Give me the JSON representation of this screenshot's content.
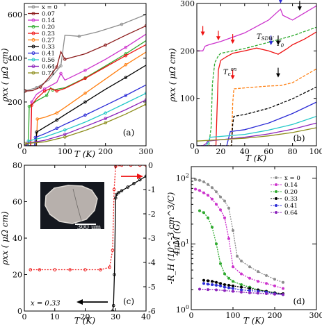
{
  "colors": {
    "x0": "#8c8c8c",
    "x007": "#8b1a1a",
    "x014": "#cc33cc",
    "x020": "#2eaa2e",
    "x023": "#ee1111",
    "x027": "#ff7f11",
    "x033": "#000000",
    "x041": "#2b2bd6",
    "x056": "#22c8c8",
    "x064": "#8b22bb",
    "x071": "#8c8c1a"
  },
  "chart_data": [
    {
      "panel": "(a)",
      "type": "line",
      "xlabel": "T (K)",
      "ylabel": "ρxx ( μΩ cm)",
      "xlim": [
        0,
        300
      ],
      "ylim": [
        0,
        650
      ],
      "xticks": [
        "0",
        "100",
        "200",
        "300"
      ],
      "yticks": [
        "0",
        "200",
        "400",
        "600"
      ],
      "legend_position": "top-left",
      "legend": [
        "x = 0",
        "0.07",
        "0.14",
        "0.20",
        "0.23",
        "0.27",
        "0.33",
        "0.41",
        "0.56",
        "0.64",
        "0.71"
      ],
      "series": [
        {
          "color_key": "x0",
          "x": [
            2,
            10,
            30,
            60,
            90,
            100,
            135,
            180,
            240,
            300
          ],
          "y": [
            252,
            255,
            265,
            300,
            365,
            505,
            500,
            520,
            555,
            600
          ]
        },
        {
          "color_key": "x007",
          "x": [
            2,
            20,
            40,
            60,
            80,
            90,
            100,
            150,
            200,
            250,
            300
          ],
          "y": [
            250,
            252,
            268,
            310,
            360,
            430,
            395,
            420,
            460,
            505,
            548
          ]
        },
        {
          "color_key": "x014",
          "x": [
            2,
            15,
            18,
            30,
            50,
            80,
            90,
            100,
            150,
            200,
            250,
            300
          ],
          "y": [
            0,
            0,
            200,
            235,
            260,
            290,
            330,
            300,
            345,
            395,
            450,
            510
          ]
        },
        {
          "color_key": "x020",
          "x": [
            2,
            10,
            12,
            30,
            55,
            65,
            70,
            100,
            150,
            200,
            250,
            300
          ],
          "y": [
            0,
            0,
            180,
            205,
            230,
            265,
            255,
            265,
            310,
            365,
            420,
            480
          ]
        },
        {
          "color_key": "x023",
          "x": [
            2,
            16,
            18,
            30,
            50,
            65,
            80,
            100,
            150,
            200,
            250,
            300
          ],
          "y": [
            0,
            0,
            185,
            215,
            250,
            262,
            250,
            262,
            308,
            360,
            412,
            462
          ]
        },
        {
          "color_key": "x027",
          "x": [
            2,
            30,
            32,
            50,
            80,
            100,
            150,
            200,
            250,
            300
          ],
          "y": [
            0,
            0,
            122,
            130,
            150,
            175,
            240,
            305,
            370,
            428
          ]
        },
        {
          "color_key": "x033",
          "x": [
            2,
            29,
            30,
            50,
            80,
            100,
            150,
            200,
            250,
            300
          ],
          "y": [
            0,
            0,
            62,
            85,
            118,
            142,
            200,
            258,
            312,
            368
          ]
        },
        {
          "color_key": "x041",
          "x": [
            2,
            25,
            27,
            50,
            80,
            100,
            150,
            200,
            250,
            300
          ],
          "y": [
            0,
            0,
            38,
            55,
            80,
            98,
            140,
            185,
            230,
            278
          ]
        },
        {
          "color_key": "x056",
          "x": [
            2,
            8,
            10,
            50,
            100,
            150,
            200,
            250,
            300
          ],
          "y": [
            0,
            0,
            22,
            40,
            72,
            108,
            150,
            195,
            240
          ]
        },
        {
          "color_key": "x064",
          "x": [
            2,
            5,
            8,
            50,
            100,
            150,
            200,
            250,
            300
          ],
          "y": [
            0,
            0,
            12,
            25,
            52,
            88,
            125,
            165,
            210
          ]
        },
        {
          "color_key": "x071",
          "x": [
            2,
            50,
            100,
            150,
            200,
            250,
            300
          ],
          "y": [
            10,
            18,
            40,
            70,
            105,
            145,
            190
          ]
        }
      ]
    },
    {
      "panel": "(b)",
      "type": "line",
      "xlabel": "T (K)",
      "ylabel": "ρxx ( μΩ cm)",
      "xlim": [
        0,
        100
      ],
      "ylim": [
        0,
        300
      ],
      "xticks": [
        "0",
        "20",
        "40",
        "60",
        "80",
        "100"
      ],
      "yticks": [
        "0",
        "100",
        "200",
        "300"
      ],
      "annotations": [
        "T_SDW",
        "T_0",
        "T_c^on"
      ],
      "series": [
        {
          "color_key": "x014",
          "x": [
            0,
            5,
            7,
            10,
            20,
            40,
            60,
            70,
            72,
            80,
            90,
            100
          ],
          "y": [
            200,
            200,
            210,
            213,
            220,
            238,
            265,
            288,
            275,
            265,
            280,
            295
          ]
        },
        {
          "color_key": "x020",
          "x": [
            0,
            10,
            12,
            13,
            15,
            18,
            20,
            40,
            60,
            80,
            100
          ],
          "y": [
            0,
            0,
            40,
            130,
            175,
            190,
            195,
            205,
            218,
            232,
            250
          ]
        },
        {
          "color_key": "x023",
          "x": [
            0,
            16,
            17,
            18,
            20,
            25,
            30,
            40,
            50,
            60,
            68,
            75,
            80,
            90,
            100
          ],
          "y": [
            0,
            0,
            80,
            160,
            180,
            188,
            195,
            200,
            206,
            200,
            193,
            204,
            213,
            225,
            240
          ]
        },
        {
          "color_key": "x027",
          "x": [
            0,
            29,
            30,
            31,
            40,
            60,
            70,
            80,
            100
          ],
          "y": [
            0,
            0,
            90,
            120,
            122,
            126,
            127,
            133,
            162
          ]
        },
        {
          "color_key": "x033",
          "x": [
            0,
            29,
            30,
            31,
            40,
            60,
            80,
            100
          ],
          "y": [
            0,
            0,
            45,
            62,
            66,
            79,
            99,
            124
          ]
        },
        {
          "color_key": "x041",
          "x": [
            0,
            25,
            27,
            28,
            40,
            60,
            80,
            100
          ],
          "y": [
            0,
            0,
            20,
            30,
            34,
            48,
            68,
            92
          ]
        },
        {
          "color_key": "x056",
          "x": [
            0,
            8,
            10,
            11,
            40,
            60,
            80,
            100
          ],
          "y": [
            0,
            0,
            10,
            18,
            24,
            33,
            45,
            62
          ]
        },
        {
          "color_key": "x064",
          "x": [
            0,
            5,
            8,
            9,
            40,
            60,
            80,
            100
          ],
          "y": [
            0,
            0,
            5,
            10,
            18,
            25,
            35,
            48
          ]
        },
        {
          "color_key": "x071",
          "x": [
            0,
            20,
            40,
            60,
            80,
            100
          ],
          "y": [
            10,
            13,
            16,
            21,
            28,
            38
          ]
        }
      ]
    },
    {
      "panel": "(c)",
      "type": "line",
      "xlabel": "T (K)",
      "ylabel": "ρxx ( μΩ cm)",
      "y2label": "4πM (G)",
      "xlim": [
        0,
        40
      ],
      "ylim": [
        0,
        80
      ],
      "y2lim": [
        -6,
        0
      ],
      "xticks": [
        "0",
        "10",
        "20",
        "30",
        "40"
      ],
      "yticks": [
        "0",
        "20",
        "40",
        "60",
        "80"
      ],
      "y2ticks": [
        "0",
        "-1",
        "-2",
        "-3",
        "-4",
        "-5",
        "-6"
      ],
      "sample_label": "x = 0.33",
      "scale_bar": "300 μm",
      "series": [
        {
          "name": "ρxx",
          "color_key": "x033",
          "x": [
            29.0,
            29.3,
            29.6,
            30.0,
            30.3,
            31,
            32,
            34,
            36,
            38,
            40
          ],
          "y": [
            0,
            3,
            20,
            62,
            64,
            65,
            66,
            68,
            70,
            72,
            74
          ]
        },
        {
          "name": "4πM",
          "color_key": "x023",
          "x": [
            2,
            5,
            10,
            15,
            20,
            25,
            28,
            29,
            29.5,
            30,
            32,
            35,
            38,
            40
          ],
          "y2": [
            -4.3,
            -4.3,
            -4.3,
            -4.3,
            -4.3,
            -4.3,
            -4.2,
            -3.5,
            -1.0,
            -0.05,
            0,
            0,
            0,
            0
          ]
        }
      ]
    },
    {
      "panel": "(d)",
      "type": "scatter",
      "xlabel": "T (K)",
      "ylabel": "-R_H (10^-3 cm^3/C)",
      "xlim": [
        0,
        300
      ],
      "ylim_log": [
        1,
        150
      ],
      "log_y": true,
      "xticks": [
        "0",
        "100",
        "200",
        "300"
      ],
      "yticks": [
        "10^0",
        "10^1",
        "10^2"
      ],
      "legend_position": "top-right",
      "legend": [
        "x = 0",
        "0.14",
        "0.20",
        "0.33",
        "0.41",
        "0.64"
      ],
      "series": [
        {
          "color_key": "x0",
          "x": [
            10,
            20,
            30,
            40,
            50,
            60,
            70,
            80,
            90,
            100,
            110,
            120,
            140,
            160,
            180,
            200,
            220
          ],
          "y": [
            95,
            93,
            88,
            80,
            72,
            62,
            52,
            45,
            35,
            16,
            6.5,
            5.5,
            4.5,
            3.8,
            3.3,
            2.9,
            2.6
          ]
        },
        {
          "color_key": "x014",
          "x": [
            10,
            20,
            30,
            40,
            50,
            60,
            70,
            80,
            90,
            100,
            120,
            140,
            160,
            180,
            200,
            220
          ],
          "y": [
            68,
            65,
            60,
            55,
            48,
            40,
            33,
            25,
            12,
            4.5,
            3.5,
            3.0,
            2.7,
            2.5,
            2.3,
            2.1
          ]
        },
        {
          "color_key": "x020",
          "x": [
            20,
            30,
            40,
            50,
            60,
            70,
            80,
            90,
            100,
            120,
            140,
            160,
            180,
            200,
            220
          ],
          "y": [
            32,
            30,
            25,
            18,
            10,
            5.0,
            3.5,
            3.0,
            2.7,
            2.4,
            2.2,
            2.0,
            1.9,
            1.8,
            1.7
          ]
        },
        {
          "color_key": "x033",
          "x": [
            30,
            40,
            50,
            60,
            70,
            80,
            90,
            100,
            120,
            140,
            160,
            180,
            200,
            220
          ],
          "y": [
            2.8,
            2.75,
            2.7,
            2.6,
            2.5,
            2.4,
            2.35,
            2.3,
            2.2,
            2.1,
            2.0,
            1.9,
            1.8,
            1.75
          ]
        },
        {
          "color_key": "x041",
          "x": [
            30,
            40,
            50,
            60,
            70,
            80,
            90,
            100,
            120,
            140,
            160,
            180,
            200,
            220
          ],
          "y": [
            2.5,
            2.45,
            2.4,
            2.35,
            2.3,
            2.2,
            2.15,
            2.1,
            2.0,
            1.95,
            1.9,
            1.85,
            1.75,
            1.7
          ]
        },
        {
          "color_key": "x064",
          "x": [
            20,
            40,
            60,
            80,
            100,
            120,
            140,
            160,
            180,
            200,
            220
          ],
          "y": [
            2.05,
            2.02,
            2.0,
            1.95,
            1.9,
            1.85,
            1.8,
            1.78,
            1.75,
            1.72,
            1.7
          ]
        }
      ]
    }
  ]
}
